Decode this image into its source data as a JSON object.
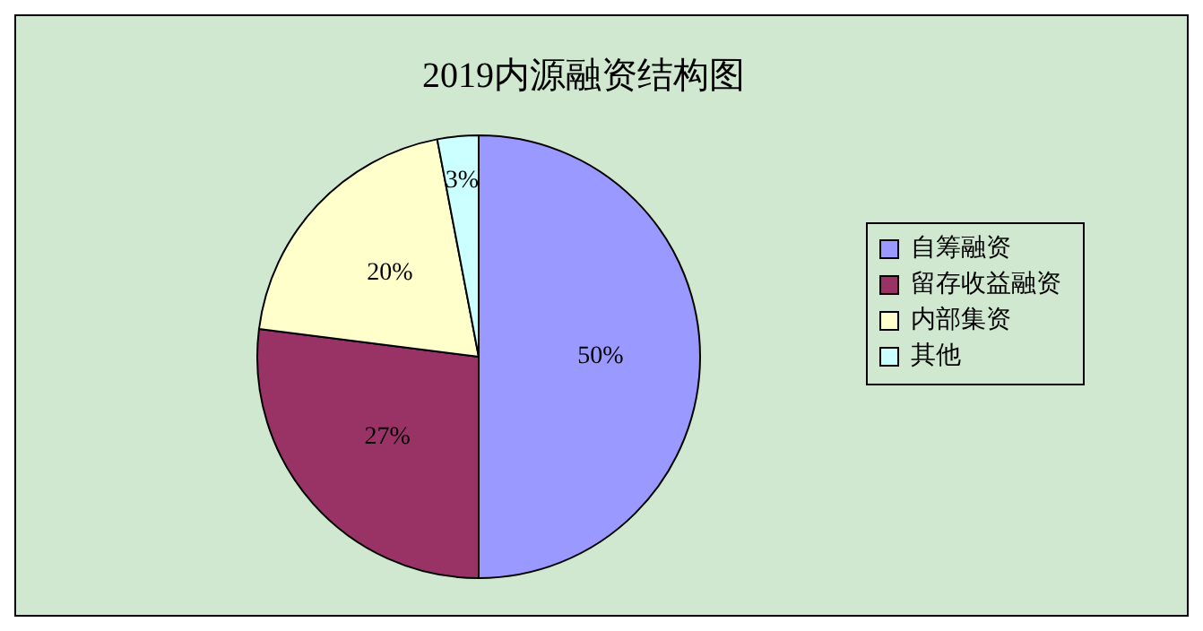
{
  "chart_data": {
    "type": "pie",
    "title": "2019内源融资结构图",
    "categories": [
      "自筹融资",
      "留存收益融资",
      "内部集资",
      "其他"
    ],
    "values": [
      50,
      27,
      20,
      3
    ],
    "colors": [
      "#9999ff",
      "#993366",
      "#ffffcc",
      "#ccffff"
    ],
    "value_labels": [
      "50%",
      "27%",
      "20%",
      "3%"
    ],
    "legend": "right"
  }
}
